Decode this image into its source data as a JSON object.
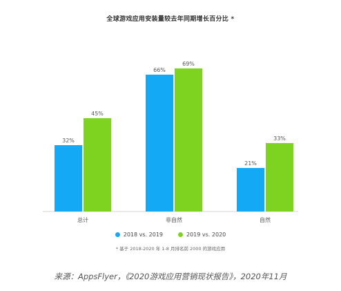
{
  "colors": {
    "series_1": "#14a9f4",
    "series_2": "#7ed321",
    "axis": "#d6d6d6"
  },
  "chart_data": {
    "type": "bar",
    "title": "全球游戏应用安装量较去年同期增长百分比 *",
    "categories": [
      "总计",
      "非自然",
      "自然"
    ],
    "series": [
      {
        "name": "2018 vs. 2019",
        "values": [
          32,
          66,
          21
        ],
        "labels": [
          "32%",
          "66%",
          "21%"
        ]
      },
      {
        "name": "2019 vs. 2020",
        "values": [
          45,
          69,
          33
        ],
        "labels": [
          "45%",
          "69%",
          "33%"
        ]
      }
    ],
    "ylim": [
      0,
      80
    ],
    "grid": false,
    "legend": "bottom-center",
    "footnote": "* 基于 2018-2020 年 1-8 月排名前 2000 的游戏应用"
  },
  "caption": "来源：AppsFlyer，《2020游戏应用营销现状报告》，2020年11月"
}
